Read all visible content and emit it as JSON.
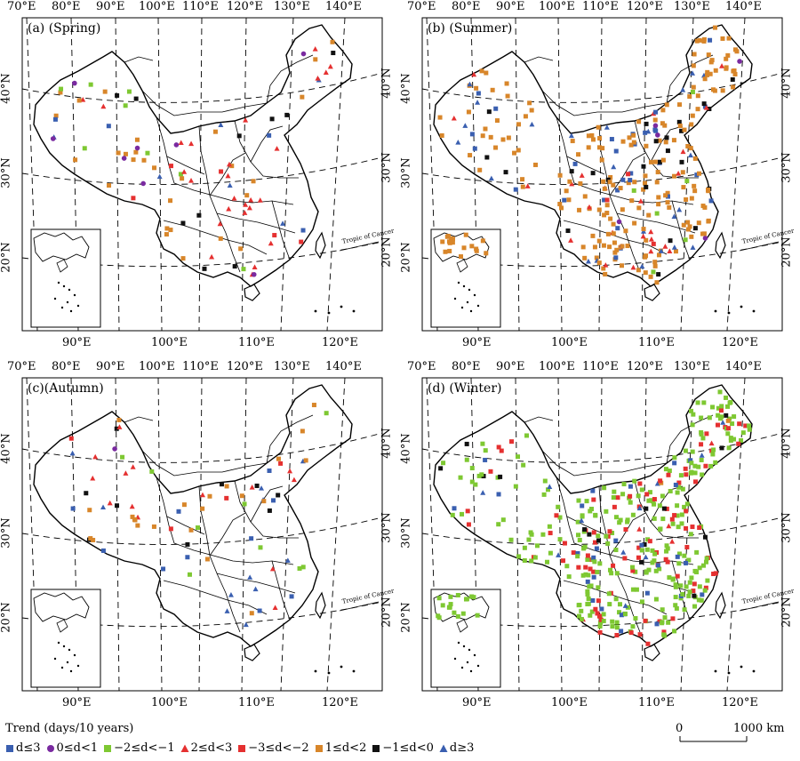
{
  "labels": {
    "top_lon": [
      "70°E",
      "80°E",
      "90°E",
      "100°E",
      "110°E",
      "120°E",
      "130°E",
      "140°E"
    ],
    "bottom_lon": [
      "90°E",
      "100°E",
      "110°E",
      "120°E"
    ],
    "left_lat": [
      "40°N",
      "30°N",
      "20°N"
    ],
    "right_lat": [
      "40°N",
      "30°N",
      "20°N"
    ],
    "tropic": "Tropic of Cancer"
  },
  "panels": [
    {
      "id": "spring",
      "title": "(a) (Spring)",
      "dominant": "mixed"
    },
    {
      "id": "summer",
      "title": "(b) (Summer)",
      "dominant": "orange"
    },
    {
      "id": "autumn",
      "title": "(c)(Autumn)",
      "dominant": "sparse"
    },
    {
      "id": "winter",
      "title": "(d) (Winter)",
      "dominant": "green"
    }
  ],
  "legend": {
    "title": "Trend (days/10 years)",
    "items": [
      {
        "symbol": "square",
        "color": "#3a5fb0",
        "label": "d≤3"
      },
      {
        "symbol": "circle",
        "color": "#7a2aa0",
        "label": "0≤d<1"
      },
      {
        "symbol": "square",
        "color": "#7ec832",
        "label": "−2≤d<−1"
      },
      {
        "symbol": "triangle",
        "color": "#e53030",
        "label": "2≤d<3"
      },
      {
        "symbol": "square",
        "color": "#e53030",
        "label": "−3≤d<−2"
      },
      {
        "symbol": "square",
        "color": "#d8862a",
        "label": "1≤d<2"
      },
      {
        "symbol": "square",
        "color": "#111111",
        "label": "−1≤d<0"
      },
      {
        "symbol": "triangle",
        "color": "#3a5fb0",
        "label": "d≥3"
      }
    ]
  },
  "scale": {
    "zero": "0",
    "max": "1000 km"
  }
}
